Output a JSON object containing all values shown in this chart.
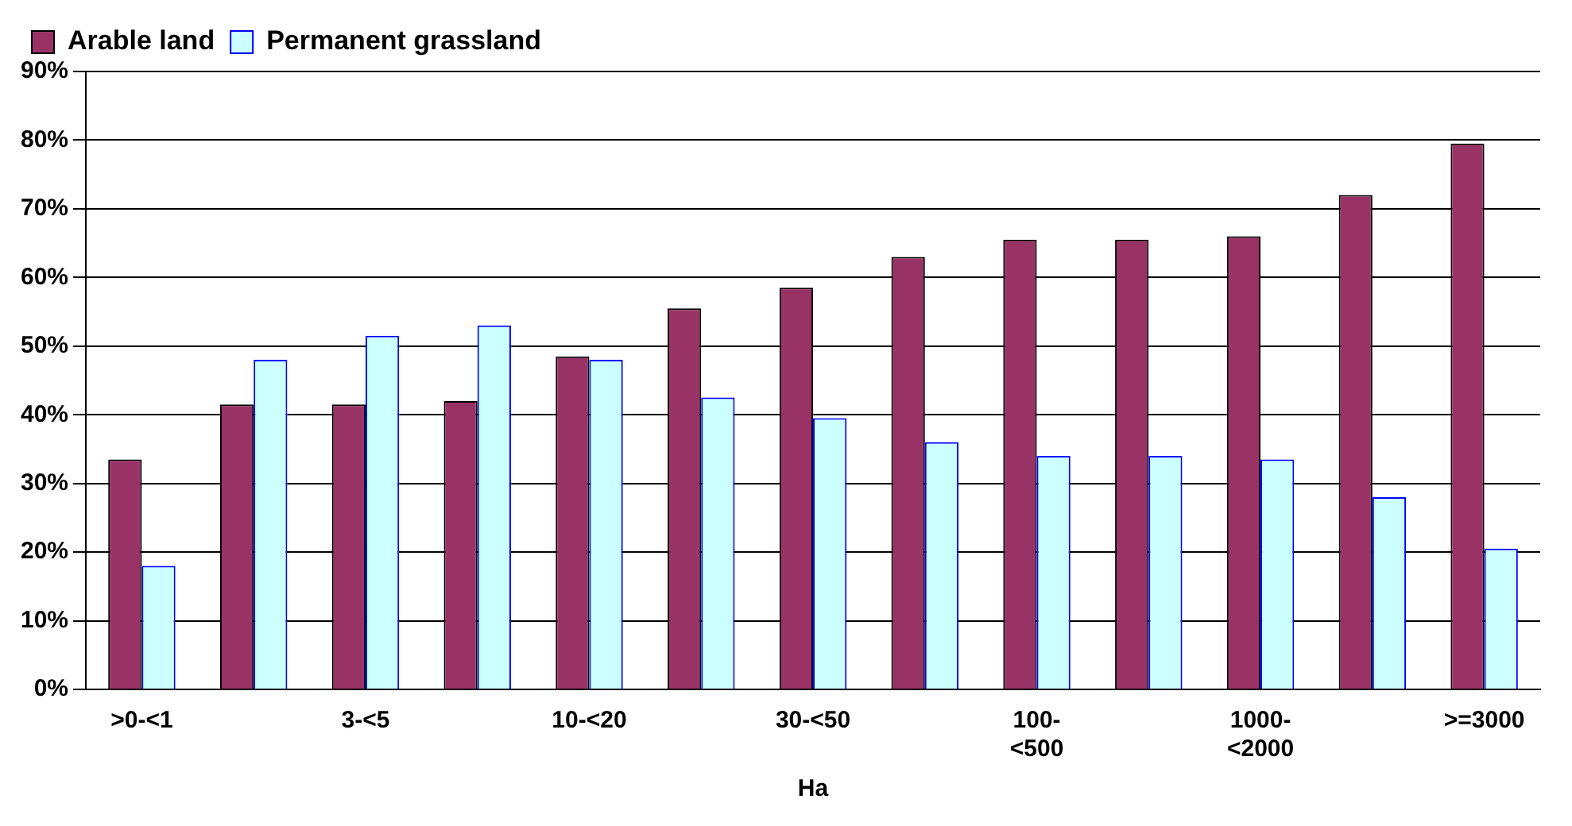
{
  "chart_data": {
    "type": "bar",
    "xlabel": "Ha",
    "categories": [
      ">0-<1",
      null,
      "3-<5",
      null,
      "10-<20",
      null,
      "30-<50",
      null,
      "100-<500",
      null,
      "1000-<2000",
      null,
      ">=3000"
    ],
    "series": [
      {
        "name": "Arable land",
        "color": "#993366",
        "values": [
          33.5,
          41.5,
          41.5,
          42,
          48.5,
          55.5,
          58.5,
          63,
          65.5,
          65.5,
          66,
          72,
          79.5
        ]
      },
      {
        "name": "Permanent grassland",
        "color": "#ccffff",
        "values": [
          18,
          48,
          51.5,
          53,
          48,
          42.5,
          39.5,
          36,
          34,
          34,
          33.5,
          28,
          20.5
        ]
      }
    ],
    "ylim": [
      0,
      90
    ],
    "yticks": [
      {
        "value": 0,
        "label": "0%"
      },
      {
        "value": 10,
        "label": "10%"
      },
      {
        "value": 20,
        "label": "20%"
      },
      {
        "value": 30,
        "label": "30%"
      },
      {
        "value": 40,
        "label": "40%"
      },
      {
        "value": 50,
        "label": "50%"
      },
      {
        "value": 60,
        "label": "60%"
      },
      {
        "value": 70,
        "label": "70%"
      },
      {
        "value": 80,
        "label": "80%"
      },
      {
        "value": 90,
        "label": "90%"
      }
    ],
    "grid": "y",
    "legend": "top left"
  }
}
